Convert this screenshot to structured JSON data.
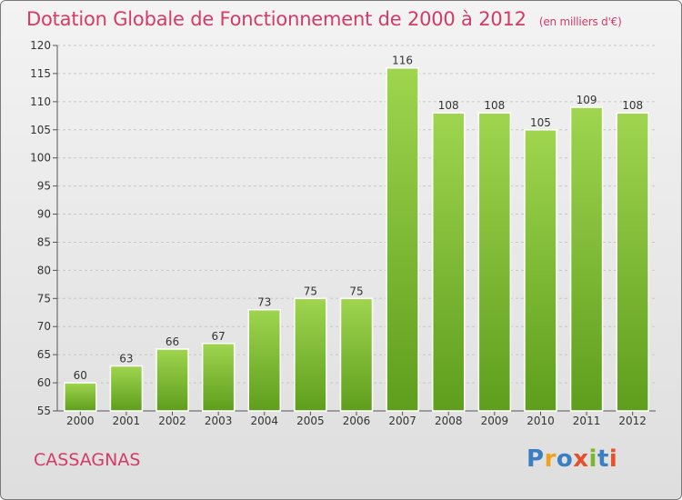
{
  "title": "Dotation Globale de Fonctionnement de 2000 à 2012",
  "subtitle": "(en milliers d'€)",
  "town": "CASSAGNAS",
  "logo": {
    "text": "Proxiti",
    "colors": [
      "#3a7fc4",
      "#f0a21f",
      "#3a7fc4",
      "#e8502b",
      "#7ab729",
      "#3a7fc4",
      "#e8502b"
    ]
  },
  "chart_data": {
    "type": "bar",
    "categories": [
      "2000",
      "2001",
      "2002",
      "2003",
      "2004",
      "2005",
      "2006",
      "2007",
      "2008",
      "2009",
      "2010",
      "2011",
      "2012"
    ],
    "values": [
      60,
      63,
      66,
      67,
      73,
      75,
      75,
      116,
      108,
      108,
      105,
      109,
      108
    ],
    "data_labels": [
      "60",
      "63",
      "66",
      "67",
      "73",
      "75",
      "75",
      "116",
      "108",
      "108",
      "105",
      "109",
      "108"
    ],
    "ylim": [
      55,
      120
    ],
    "yticks": [
      "55",
      "60",
      "65",
      "70",
      "75",
      "80",
      "85",
      "90",
      "95",
      "100",
      "105",
      "110",
      "115",
      "120"
    ],
    "grid": true,
    "bar_color": "#7dc13a"
  }
}
